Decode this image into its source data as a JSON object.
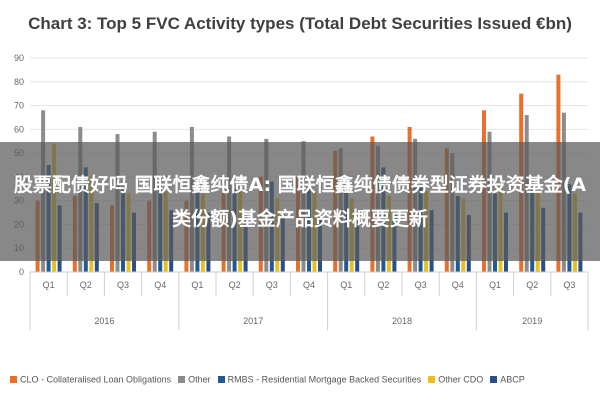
{
  "title": "Chart 3: Top 5 FVC Activity types (Total Debt Securities Issued €bn)",
  "overlay": {
    "text": "股票配债好吗 国联恒鑫纯债A: 国联恒鑫纯债债券型证券投资基金(A类份额)基金产品资料概要更新"
  },
  "colors": {
    "CLO": "#e8702a",
    "Other": "#8c8c8c",
    "RMBS": "#1f5a96",
    "OtherCDO": "#e8c020",
    "ABCP": "#2a4f88",
    "grid": "#e6e6e6",
    "axis_text": "#666666"
  },
  "chart_data": {
    "type": "bar",
    "title": "Chart 3: Top 5 FVC Activity types (Total Debt Securities Issued €bn)",
    "ylim": [
      0,
      90
    ],
    "yticks": [
      0,
      10,
      20,
      30,
      40,
      50,
      60,
      70,
      80,
      90
    ],
    "grid": true,
    "legend_position": "bottom",
    "categories": [
      "Q1",
      "Q2",
      "Q3",
      "Q4",
      "Q1",
      "Q2",
      "Q3",
      "Q4",
      "Q1",
      "Q2",
      "Q3",
      "Q4",
      "Q1",
      "Q2",
      "Q3"
    ],
    "year_groups": [
      {
        "label": "2016",
        "count": 4
      },
      {
        "label": "2017",
        "count": 4
      },
      {
        "label": "2018",
        "count": 4
      },
      {
        "label": "2019",
        "count": 3
      }
    ],
    "series": [
      {
        "name": "CLO - Collateralised Loan Obligations",
        "key": "CLO",
        "values": [
          30,
          32,
          28,
          30,
          30,
          33,
          40,
          40,
          51,
          57,
          61,
          52,
          68,
          75,
          83
        ]
      },
      {
        "name": "Other",
        "key": "Other",
        "values": [
          68,
          61,
          58,
          59,
          61,
          57,
          56,
          55,
          52,
          53,
          56,
          50,
          59,
          66,
          67
        ]
      },
      {
        "name": "RMBS - Residential Mortgage Backed Securities",
        "key": "RMBS",
        "values": [
          45,
          44,
          36,
          37,
          34,
          35,
          38,
          36,
          34,
          44,
          36,
          32,
          33,
          39,
          37
        ]
      },
      {
        "name": "Other CDO",
        "key": "OtherCDO",
        "values": [
          54,
          40,
          33,
          34,
          33,
          34,
          31,
          34,
          31,
          32,
          34,
          31,
          36,
          34,
          33
        ]
      },
      {
        "name": "ABCP",
        "key": "ABCP",
        "values": [
          28,
          29,
          25,
          26,
          25,
          24,
          24,
          23,
          24,
          25,
          26,
          24,
          25,
          27,
          25
        ]
      }
    ]
  }
}
